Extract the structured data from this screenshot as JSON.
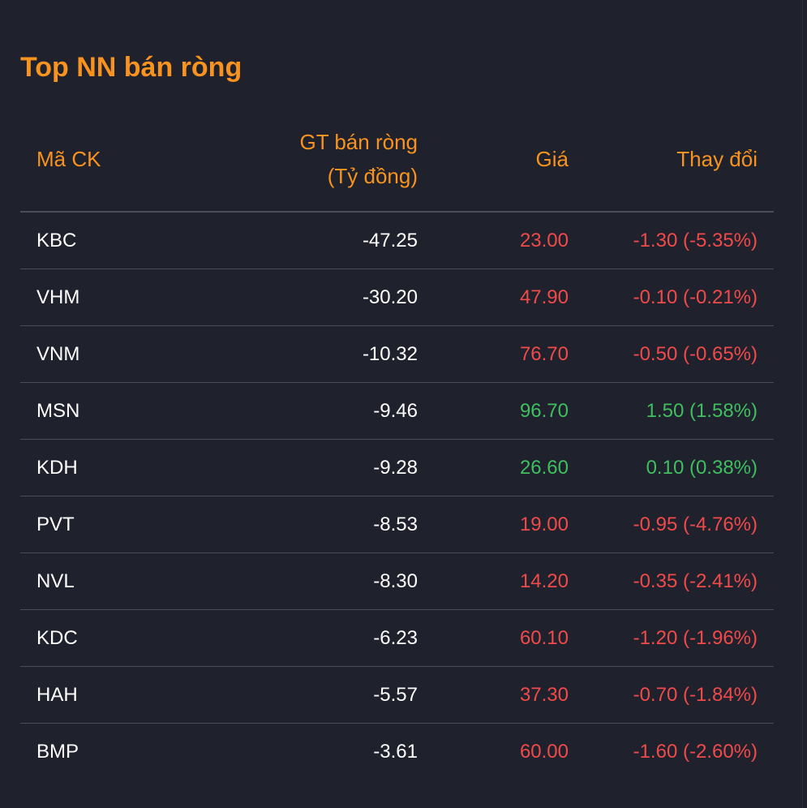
{
  "title": "Top NN bán ròng",
  "colors": {
    "accent": "#f7931e",
    "down": "#f04a4a",
    "up": "#3fbf5f",
    "background": "#1f212d",
    "divider": "#4a4c58"
  },
  "table": {
    "headers": {
      "code": "Mã CK",
      "value_line1": "GT bán ròng",
      "value_line2": "(Tỷ đồng)",
      "price": "Giá",
      "change": "Thay đổi"
    },
    "rows": [
      {
        "code": "KBC",
        "value": "-47.25",
        "price": "23.00",
        "change": "-1.30 (-5.35%)",
        "dir": "down"
      },
      {
        "code": "VHM",
        "value": "-30.20",
        "price": "47.90",
        "change": "-0.10 (-0.21%)",
        "dir": "down"
      },
      {
        "code": "VNM",
        "value": "-10.32",
        "price": "76.70",
        "change": "-0.50 (-0.65%)",
        "dir": "down"
      },
      {
        "code": "MSN",
        "value": "-9.46",
        "price": "96.70",
        "change": "1.50 (1.58%)",
        "dir": "up"
      },
      {
        "code": "KDH",
        "value": "-9.28",
        "price": "26.60",
        "change": "0.10 (0.38%)",
        "dir": "up"
      },
      {
        "code": "PVT",
        "value": "-8.53",
        "price": "19.00",
        "change": "-0.95 (-4.76%)",
        "dir": "down"
      },
      {
        "code": "NVL",
        "value": "-8.30",
        "price": "14.20",
        "change": "-0.35 (-2.41%)",
        "dir": "down"
      },
      {
        "code": "KDC",
        "value": "-6.23",
        "price": "60.10",
        "change": "-1.20 (-1.96%)",
        "dir": "down"
      },
      {
        "code": "HAH",
        "value": "-5.57",
        "price": "37.30",
        "change": "-0.70 (-1.84%)",
        "dir": "down"
      },
      {
        "code": "BMP",
        "value": "-3.61",
        "price": "60.00",
        "change": "-1.60 (-2.60%)",
        "dir": "down"
      }
    ]
  }
}
